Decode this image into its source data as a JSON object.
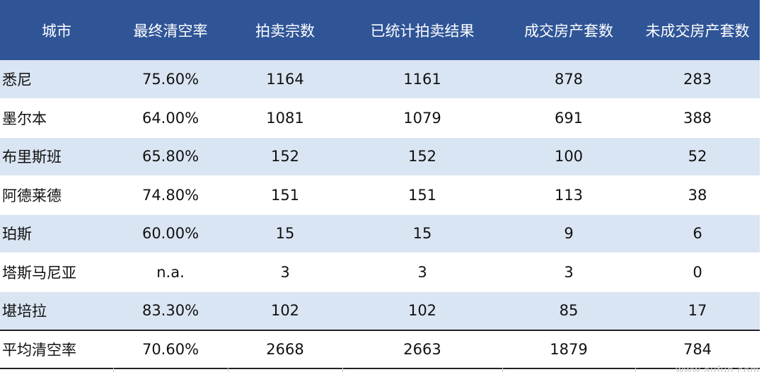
{
  "headers": [
    "城市",
    "最终清空率",
    "拍卖宗数",
    "已统计拍卖结果",
    "成交房产套数",
    "未成交房产套数"
  ],
  "rows": [
    [
      "悉尼",
      "75.60%",
      "1164",
      "1161",
      "878",
      "283"
    ],
    [
      "墨尔本",
      "64.00%",
      "1081",
      "1079",
      "691",
      "388"
    ],
    [
      "布里斯班",
      "65.80%",
      "152",
      "152",
      "100",
      "52"
    ],
    [
      "阿德莱德",
      "74.80%",
      "151",
      "151",
      "113",
      "38"
    ],
    [
      "珀斯",
      "60.00%",
      "15",
      "15",
      "9",
      "6"
    ],
    [
      "塔斯马尼亚",
      "n.a.",
      "3",
      "3",
      "3",
      "0"
    ],
    [
      "堪培拉",
      "83.30%",
      "102",
      "102",
      "85",
      "17"
    ]
  ],
  "total": [
    "平均清空率",
    "70.60%",
    "2668",
    "2663",
    "1879",
    "784"
  ],
  "watermark": "www.aufun.com",
  "colors": {
    "header_bg": "#2f5597",
    "header_text": "#ffffff",
    "stripe": "#dae5f3",
    "accent": "#2e8b3d"
  }
}
